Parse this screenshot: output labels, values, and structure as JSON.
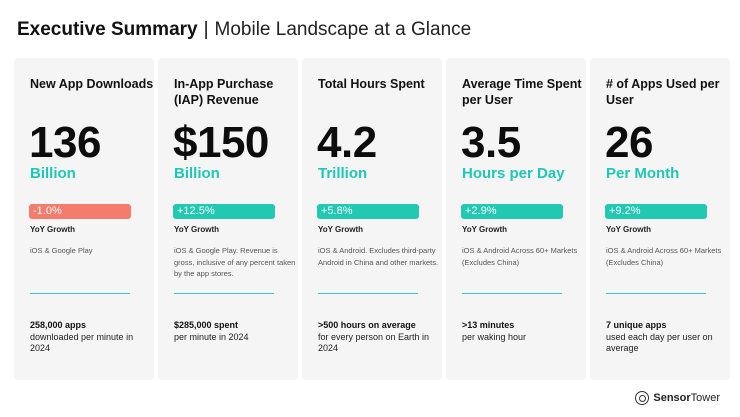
{
  "header": {
    "title": "Executive Summary",
    "separator": "|",
    "subtitle": "Mobile Landscape at a Glance"
  },
  "cards": [
    {
      "title": "New App Downloads",
      "value": "136",
      "unit": "Billion",
      "yoy": "-1.0%",
      "yoy_label": "YoY Growth",
      "note": "iOS & Google Play",
      "foot_bold": "258,000 apps",
      "foot": "downloaded per minute in 2024"
    },
    {
      "title": "In-App Purchase (IAP) Revenue",
      "value": "$150",
      "unit": "Billion",
      "yoy": "+12.5%",
      "yoy_label": "YoY Growth",
      "note": "iOS & Google Play. Revenue is gross, inclusive of any percent taken by the app stores.",
      "foot_bold": "$285,000 spent",
      "foot": "per minute in 2024"
    },
    {
      "title": "Total Hours Spent",
      "value": "4.2",
      "unit": "Trillion",
      "yoy": "+5.8%",
      "yoy_label": "YoY Growth",
      "note": "iOS & Android. Excludes third-party Android in China and other markets.",
      "foot_bold": ">500 hours on average",
      "foot": "for every person on Earth in 2024"
    },
    {
      "title": "Average Time Spent per User",
      "value": "3.5",
      "unit": "Hours per Day",
      "yoy": "+2.9%",
      "yoy_label": "YoY Growth",
      "note": "iOS & Android Across 60+ Markets (Excludes China)",
      "foot_bold": ">13 minutes",
      "foot": "per waking hour"
    },
    {
      "title": "# of Apps Used per User",
      "value": "26",
      "unit": "Per Month",
      "yoy": "+9.2%",
      "yoy_label": "YoY Growth",
      "note": "iOS & Android Across 60+ Markets (Excludes China)",
      "foot_bold": "7 unique apps",
      "foot": "used each day per user on average"
    }
  ],
  "logo": {
    "bold": "Sensor",
    "rest": "Tower"
  },
  "colors": {
    "accent": "#22c9b2",
    "negative": "#f47c6c",
    "unit_text": "#1ec7b6"
  }
}
